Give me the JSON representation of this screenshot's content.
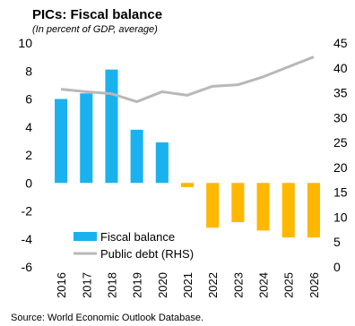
{
  "chart_data": {
    "type": "bar",
    "title": "PICs: Fiscal balance",
    "subtitle": "(In percent of GDP, average)",
    "categories": [
      "2016",
      "2017",
      "2018",
      "2019",
      "2020",
      "2021",
      "2022",
      "2023",
      "2024",
      "2025",
      "2026"
    ],
    "series": [
      {
        "name": "Fiscal balance",
        "type": "bar",
        "axis": "left",
        "values": [
          6.0,
          6.4,
          8.1,
          3.8,
          2.9,
          -0.3,
          -3.2,
          -2.8,
          -3.4,
          -3.9,
          -3.9
        ],
        "colors": {
          "positive": "#1ab2ee",
          "negative": "#ffb700"
        }
      },
      {
        "name": "Public debt (RHS)",
        "type": "line",
        "axis": "right",
        "values": [
          35.7,
          35.2,
          34.8,
          33.2,
          35.2,
          34.5,
          36.3,
          36.6,
          38.2,
          40.2,
          42.2
        ],
        "color": "#b8b8b8"
      }
    ],
    "y_left": {
      "ylim": [
        -6,
        10
      ],
      "ticks": [
        "10",
        "8",
        "6",
        "4",
        "2",
        "0",
        "-2",
        "-4",
        "-6"
      ]
    },
    "y_right": {
      "ylim": [
        0,
        45
      ],
      "ticks": [
        "45",
        "40",
        "35",
        "30",
        "25",
        "20",
        "15",
        "10",
        "5",
        "0"
      ]
    },
    "legend": {
      "placement": "bottom-left"
    },
    "grid": false,
    "source": "Source: World Economic Outlook Database."
  }
}
